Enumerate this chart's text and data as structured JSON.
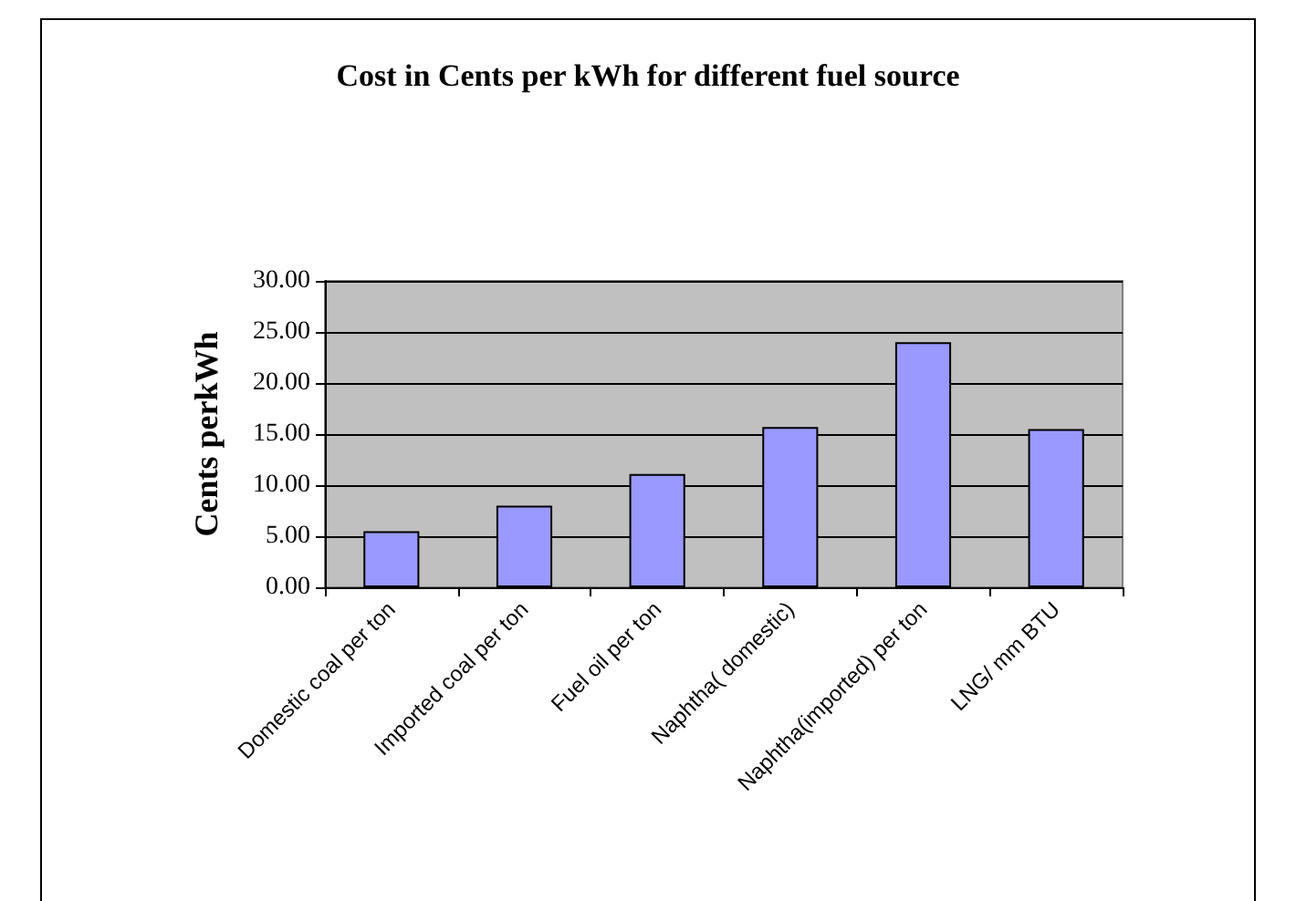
{
  "chart_data": {
    "type": "bar",
    "title": "Cost in Cents per kWh for different fuel source",
    "ylabel": "Cents perkWh",
    "categories": [
      "Domestic coal per ton",
      "Imported coal per ton",
      "Fuel oil per ton",
      "Naphtha( domestic)",
      "Naphtha(imported) per ton",
      "LNG/ mm BTU"
    ],
    "values": [
      5.5,
      8.0,
      11.1,
      15.7,
      24.0,
      15.5
    ],
    "color": "#9999ff",
    "ylim": [
      0,
      30
    ],
    "yticks": [
      {
        "value": 0,
        "label": "0.00"
      },
      {
        "value": 5,
        "label": "5.00"
      },
      {
        "value": 10,
        "label": "10.00"
      },
      {
        "value": 15,
        "label": "15.00"
      },
      {
        "value": 20,
        "label": "20.00"
      },
      {
        "value": 25,
        "label": "25.00"
      },
      {
        "value": 30,
        "label": "30.00"
      }
    ],
    "grid": "y"
  }
}
